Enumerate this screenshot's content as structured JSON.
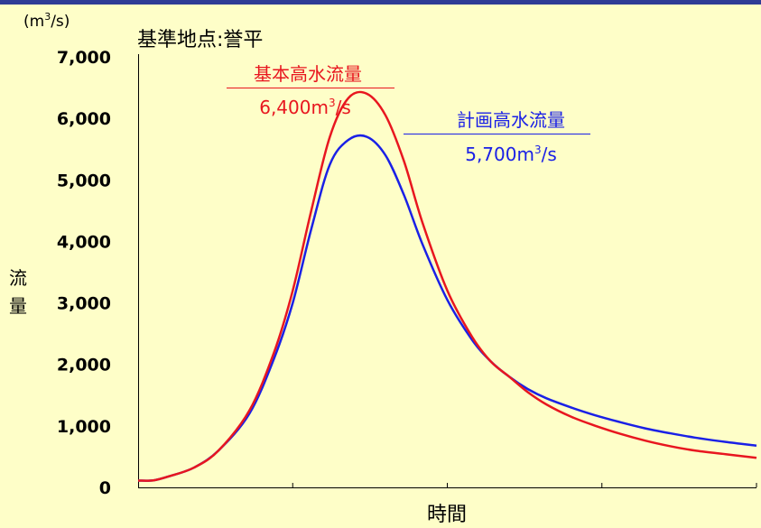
{
  "chart_data": {
    "type": "line",
    "title": "基準地点:誉平",
    "ylabel_unit_prefix": "(m",
    "ylabel_unit_exp": "3",
    "ylabel_unit_suffix": "/s)",
    "ylabel_char1": "流",
    "ylabel_char2": "量",
    "xlabel": "時間",
    "ylim": [
      0,
      7000
    ],
    "y_ticks": [
      0,
      1000,
      2000,
      3000,
      4000,
      5000,
      6000,
      7000
    ],
    "y_tick_labels": [
      "0",
      "1,000",
      "2,000",
      "3,000",
      "4,000",
      "5,000",
      "6,000",
      "7,000"
    ],
    "x_tick_count": 4,
    "grid": false,
    "colors": {
      "background": "#fefec8",
      "top_bar": "#2f3c96",
      "basic_series": "#e8161f",
      "plan_series": "#1a20e6"
    },
    "annotations": {
      "basic": {
        "name": "基本高水流量",
        "value_prefix": "6,400m",
        "exp": "3",
        "value_suffix": "/s"
      },
      "plan": {
        "name": "計画高水流量",
        "value_prefix": "5,700m",
        "exp": "3",
        "value_suffix": "/s"
      }
    },
    "series": [
      {
        "key": "basic",
        "name": "基本高水流量",
        "color": "#e8161f",
        "x": [
          0,
          2.5,
          5,
          9,
          13,
          18,
          22,
          25,
          28,
          31,
          34,
          37,
          40,
          43,
          46,
          50,
          54,
          57,
          60,
          63,
          66,
          70,
          74,
          78,
          82,
          86,
          90,
          95,
          100
        ],
        "y": [
          110,
          115,
          180,
          320,
          600,
          1250,
          2200,
          3200,
          4500,
          5700,
          6330,
          6400,
          6050,
          5300,
          4300,
          3200,
          2450,
          2050,
          1800,
          1550,
          1350,
          1150,
          1000,
          870,
          760,
          670,
          600,
          540,
          480
        ]
      },
      {
        "key": "plan",
        "name": "計画高水流量",
        "color": "#1a20e6",
        "x": [
          0,
          2.5,
          5,
          9,
          13,
          18,
          22,
          25,
          28,
          31,
          34,
          37,
          40,
          43,
          46,
          50,
          54,
          57,
          60,
          63,
          66,
          70,
          74,
          78,
          82,
          86,
          90,
          95,
          100
        ],
        "y": [
          110,
          115,
          180,
          320,
          600,
          1200,
          2100,
          3000,
          4200,
          5250,
          5650,
          5700,
          5400,
          4750,
          3950,
          3050,
          2400,
          2050,
          1800,
          1600,
          1450,
          1300,
          1170,
          1060,
          960,
          880,
          810,
          740,
          680
        ]
      }
    ]
  }
}
